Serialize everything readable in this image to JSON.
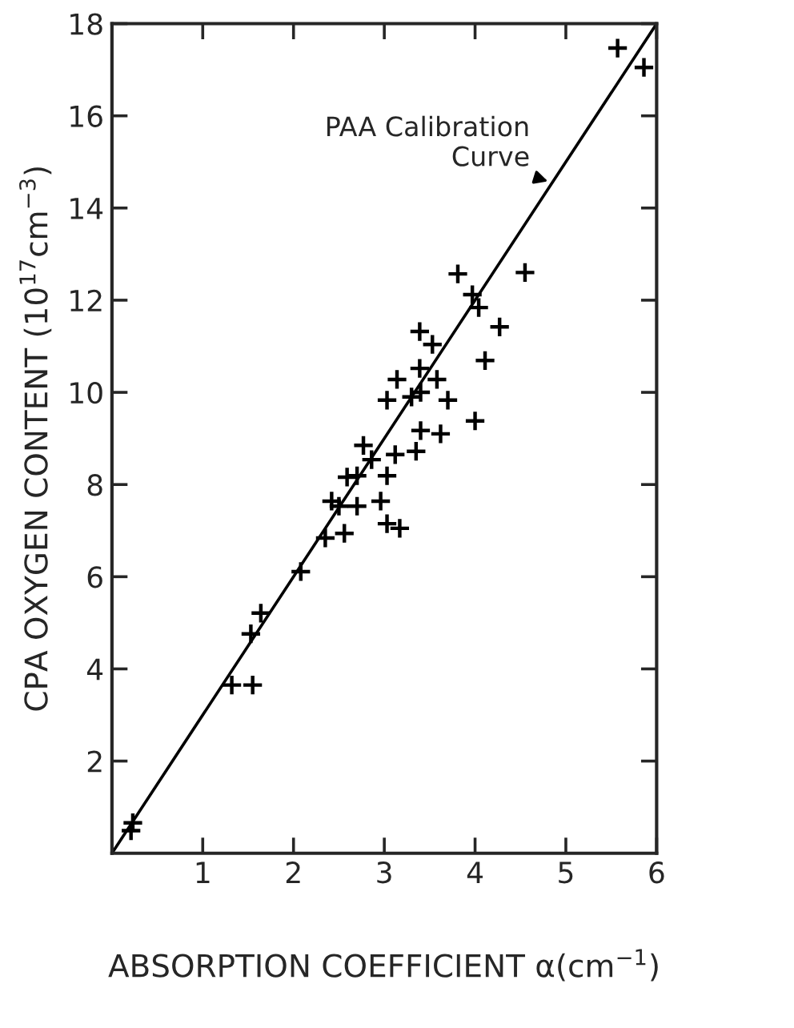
{
  "chart_data": {
    "type": "scatter",
    "xlabel": "ABSORPTION COEFFICIENT α(cm$^{−1}$)",
    "ylabel": "CPA OXYGEN CONTENT (10$^{17}$cm$^{−3}$)",
    "xlim": [
      0,
      6
    ],
    "ylim": [
      0,
      18
    ],
    "xticks": [
      1,
      2,
      3,
      4,
      5,
      6
    ],
    "yticks": [
      2,
      4,
      6,
      8,
      10,
      12,
      14,
      16,
      18
    ],
    "grid": false,
    "legend": false,
    "marker": "cross",
    "series": [
      {
        "color": "#000000",
        "x": [
          5.57,
          5.86,
          3.81,
          4.55,
          3.97,
          4.04,
          4.27,
          4.11,
          3.39,
          3.53,
          3.14,
          3.39,
          3.58,
          3.03,
          3.3,
          3.4,
          3.7,
          4.0,
          3.4,
          3.62,
          2.77,
          2.86,
          3.12,
          3.35,
          2.59,
          2.7,
          3.03,
          2.42,
          2.5,
          2.7,
          2.96,
          3.03,
          3.17,
          2.35,
          2.56,
          2.08,
          1.64,
          1.53,
          1.32,
          1.55,
          0.23,
          0.21
        ],
        "values": [
          17.47,
          17.05,
          12.57,
          12.6,
          12.12,
          11.84,
          11.42,
          10.69,
          11.32,
          11.04,
          10.28,
          10.52,
          10.28,
          9.83,
          9.9,
          10.0,
          9.83,
          9.38,
          9.17,
          9.1,
          8.85,
          8.54,
          8.65,
          8.72,
          8.16,
          8.19,
          8.19,
          7.64,
          7.53,
          7.53,
          7.64,
          7.15,
          7.05,
          6.84,
          6.94,
          6.11,
          5.21,
          4.76,
          3.65,
          3.65,
          0.66,
          0.49
        ]
      },
      {
        "type": "line",
        "color": "#000000",
        "line_style": "solid",
        "marker": "none",
        "x": [
          0,
          6
        ],
        "values": [
          0,
          18
        ]
      }
    ],
    "annotations": [
      {
        "text": "PAA Calibration\nCurve",
        "x": 4.85,
        "y": 14.55
      }
    ]
  }
}
